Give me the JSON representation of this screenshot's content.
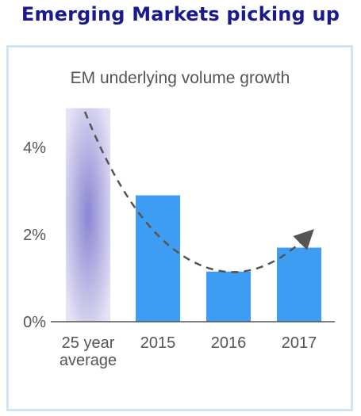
{
  "header": {
    "title": "Emerging Markets picking up"
  },
  "chart_data": {
    "type": "bar",
    "title": "EM underlying volume growth",
    "xlabel": "",
    "ylabel": "",
    "categories": [
      [
        "25 year",
        "average"
      ],
      [
        "2015"
      ],
      [
        "2016"
      ],
      [
        "2017"
      ]
    ],
    "values": [
      4.9,
      2.9,
      1.15,
      1.7
    ],
    "ylim": [
      0,
      5
    ],
    "yticks": [
      {
        "value": 0,
        "label": "0%"
      },
      {
        "value": 2,
        "label": "2%"
      },
      {
        "value": 4,
        "label": "4%"
      }
    ],
    "grid": false,
    "legend": "none",
    "trend_arrow": "dashed curve descending from the 25 year average to 2016 then rising toward 2017",
    "colors": {
      "bar": "#3d9df3",
      "average_bar_center": "#8a86d2",
      "average_bar_edge": "#e4e2f4",
      "trend": "#555555",
      "axis": "#555555",
      "title": "#1a1a8c",
      "panel_border": "#cfe3f7"
    }
  }
}
